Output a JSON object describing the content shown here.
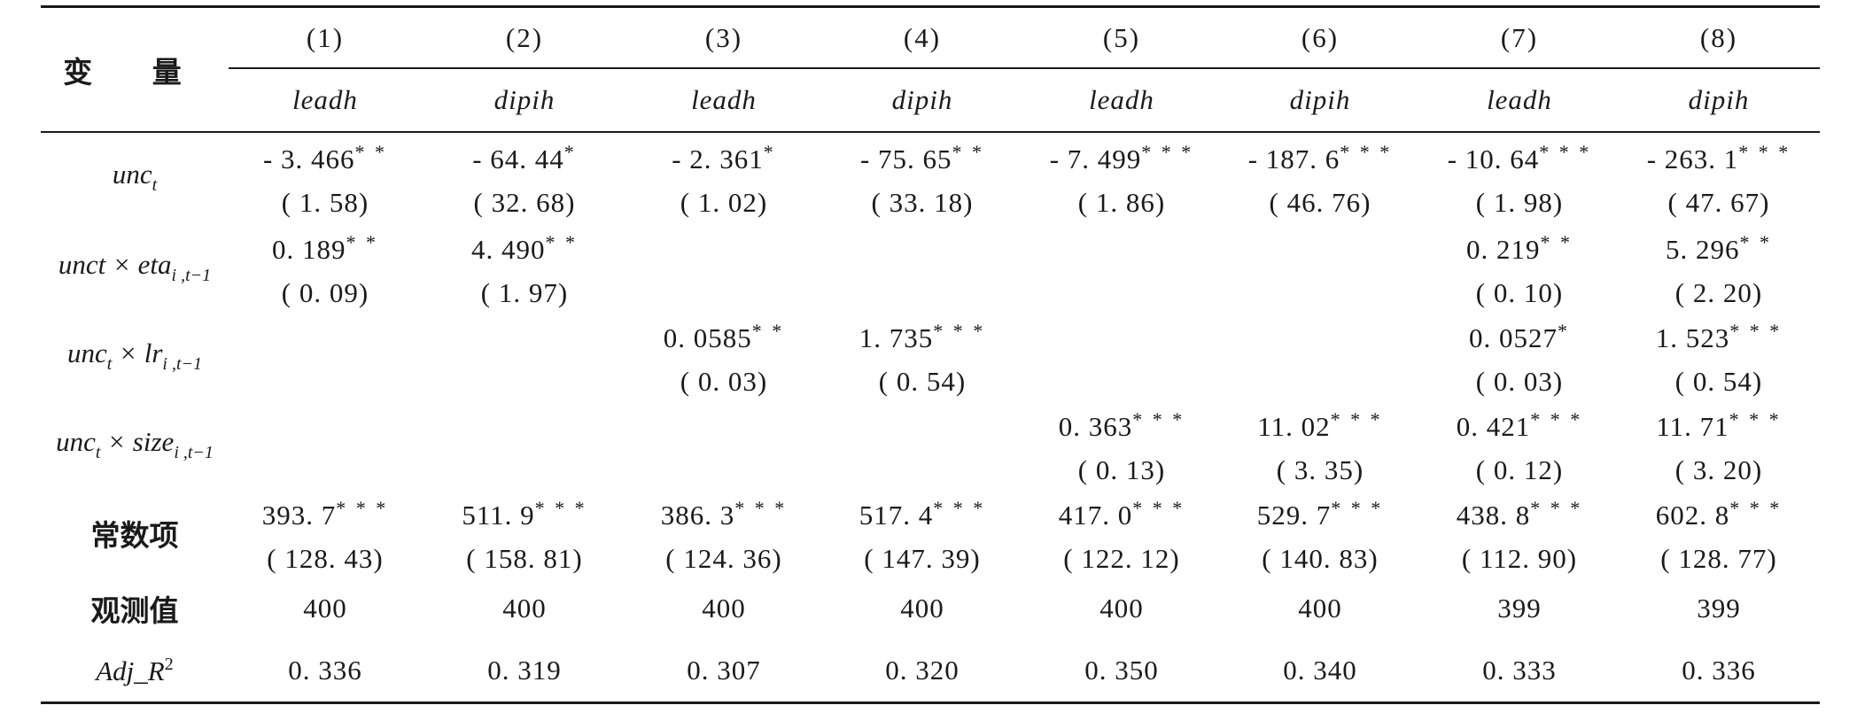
{
  "header": {
    "variable_label": "变 量",
    "columns": [
      "(1)",
      "(2)",
      "(3)",
      "(4)",
      "(5)",
      "(6)",
      "(7)",
      "(8)"
    ],
    "dependent_vars": [
      "leadh",
      "dipih",
      "leadh",
      "dipih",
      "leadh",
      "dipih",
      "leadh",
      "dipih"
    ]
  },
  "rows": [
    {
      "label_main": "unc",
      "label_sub": "t",
      "label_rest": "",
      "label_rest_sub": "",
      "cells": [
        {
          "coef": "- 3. 466",
          "stars": "* *",
          "se": "( 1. 58)"
        },
        {
          "coef": "- 64. 44",
          "stars": "*",
          "se": "( 32. 68)"
        },
        {
          "coef": "- 2. 361",
          "stars": "*",
          "se": "( 1. 02)"
        },
        {
          "coef": "- 75. 65",
          "stars": "* *",
          "se": "( 33. 18)"
        },
        {
          "coef": "- 7. 499",
          "stars": "* * *",
          "se": "( 1. 86)"
        },
        {
          "coef": "- 187. 6",
          "stars": "* * *",
          "se": "( 46. 76)"
        },
        {
          "coef": "- 10. 64",
          "stars": "* * *",
          "se": "( 1. 98)"
        },
        {
          "coef": "- 263. 1",
          "stars": "* * *",
          "se": "( 47. 67)"
        }
      ]
    },
    {
      "label_main": "unct × eta",
      "label_sub": "i ,t−1",
      "label_rest": "",
      "label_rest_sub": "",
      "cells": [
        {
          "coef": "0. 189",
          "stars": "* *",
          "se": "( 0. 09)"
        },
        {
          "coef": "4. 490",
          "stars": "* *",
          "se": "( 1. 97)"
        },
        {
          "coef": "",
          "stars": "",
          "se": ""
        },
        {
          "coef": "",
          "stars": "",
          "se": ""
        },
        {
          "coef": "",
          "stars": "",
          "se": ""
        },
        {
          "coef": "",
          "stars": "",
          "se": ""
        },
        {
          "coef": "0. 219",
          "stars": "* *",
          "se": "( 0. 10)"
        },
        {
          "coef": "5. 296",
          "stars": "* *",
          "se": "( 2. 20)"
        }
      ]
    },
    {
      "label_main": "unc",
      "label_sub": "t",
      "label_rest": " × lr",
      "label_rest_sub": "i ,t−1",
      "cells": [
        {
          "coef": "",
          "stars": "",
          "se": ""
        },
        {
          "coef": "",
          "stars": "",
          "se": ""
        },
        {
          "coef": "0. 0585",
          "stars": "* *",
          "se": "( 0. 03)"
        },
        {
          "coef": "1. 735",
          "stars": "* * *",
          "se": "( 0. 54)"
        },
        {
          "coef": "",
          "stars": "",
          "se": ""
        },
        {
          "coef": "",
          "stars": "",
          "se": ""
        },
        {
          "coef": "0. 0527",
          "stars": "*",
          "se": "( 0. 03)"
        },
        {
          "coef": "1. 523",
          "stars": "* * *",
          "se": "( 0. 54)"
        }
      ]
    },
    {
      "label_main": "unc",
      "label_sub": "t",
      "label_rest": " × size",
      "label_rest_sub": "i ,t−1",
      "cells": [
        {
          "coef": "",
          "stars": "",
          "se": ""
        },
        {
          "coef": "",
          "stars": "",
          "se": ""
        },
        {
          "coef": "",
          "stars": "",
          "se": ""
        },
        {
          "coef": "",
          "stars": "",
          "se": ""
        },
        {
          "coef": "0. 363",
          "stars": "* * *",
          "se": "( 0. 13)"
        },
        {
          "coef": "11. 02",
          "stars": "* * *",
          "se": "( 3. 35)"
        },
        {
          "coef": "0. 421",
          "stars": "* * *",
          "se": "( 0. 12)"
        },
        {
          "coef": "11. 71",
          "stars": "* * *",
          "se": "( 3. 20)"
        }
      ]
    },
    {
      "label_cn": "常数项",
      "cells": [
        {
          "coef": "393. 7",
          "stars": "* * *",
          "se": "( 128. 43)"
        },
        {
          "coef": "511. 9",
          "stars": "* * *",
          "se": "( 158. 81)"
        },
        {
          "coef": "386. 3",
          "stars": "* * *",
          "se": "( 124. 36)"
        },
        {
          "coef": "517. 4",
          "stars": "* * *",
          "se": "( 147. 39)"
        },
        {
          "coef": "417. 0",
          "stars": "* * *",
          "se": "( 122. 12)"
        },
        {
          "coef": "529. 7",
          "stars": "* * *",
          "se": "( 140. 83)"
        },
        {
          "coef": "438. 8",
          "stars": "* * *",
          "se": "( 112. 90)"
        },
        {
          "coef": "602. 8",
          "stars": "* * *",
          "se": "( 128. 77)"
        }
      ]
    }
  ],
  "observations": {
    "label_cn": "观测值",
    "values": [
      "400",
      "400",
      "400",
      "400",
      "400",
      "400",
      "399",
      "399"
    ]
  },
  "adj_r2": {
    "label": "Adj_R",
    "label_sup": "2",
    "values": [
      "0. 336",
      "0. 319",
      "0. 307",
      "0. 320",
      "0. 350",
      "0. 340",
      "0. 333",
      "0. 336"
    ]
  }
}
